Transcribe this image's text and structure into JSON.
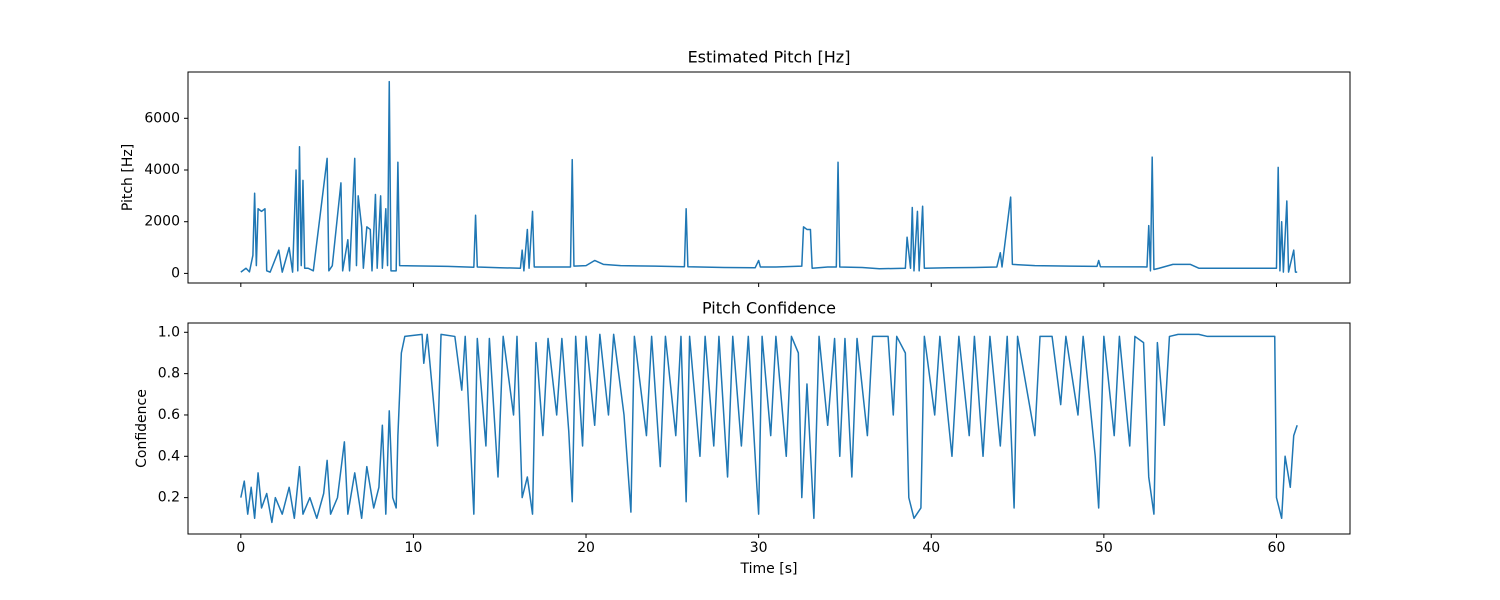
{
  "chart_data": [
    {
      "type": "line",
      "title": "Estimated Pitch [Hz]",
      "ylabel": "Pitch [Hz]",
      "color": "#1f77b4",
      "show_xticklabels": false,
      "xlim": [
        -3.06,
        64.26
      ],
      "ylim": [
        -371,
        7791
      ],
      "xticks": [
        0,
        10,
        20,
        30,
        40,
        50,
        60
      ],
      "yticks": [
        0,
        2000,
        4000,
        6000
      ],
      "x": [
        0,
        0.3,
        0.5,
        0.7,
        0.8,
        0.9,
        1.0,
        1.2,
        1.4,
        1.5,
        1.7,
        2.2,
        2.4,
        2.8,
        3.0,
        3.2,
        3.3,
        3.4,
        3.5,
        3.6,
        3.7,
        3.9,
        4.2,
        5.0,
        5.1,
        5.3,
        5.8,
        5.9,
        6.2,
        6.3,
        6.6,
        6.7,
        6.8,
        7.0,
        7.1,
        7.3,
        7.5,
        7.6,
        7.8,
        7.9,
        8.1,
        8.2,
        8.4,
        8.5,
        8.6,
        8.7,
        9.0,
        9.1,
        9.2,
        10,
        12,
        13.5,
        13.6,
        13.7,
        15,
        16.2,
        16.3,
        16.4,
        16.6,
        16.7,
        16.9,
        17.0,
        18.5,
        19.1,
        19.2,
        19.3,
        20,
        20.5,
        21,
        22,
        24,
        25.7,
        25.8,
        25.9,
        28,
        29.8,
        30,
        30.1,
        31,
        32.5,
        32.6,
        32.8,
        33.0,
        33.1,
        34,
        34.5,
        34.6,
        34.7,
        36,
        37,
        38.5,
        38.6,
        38.8,
        38.9,
        39.0,
        39.2,
        39.3,
        39.5,
        39.6,
        41,
        42.5,
        43.8,
        44.0,
        44.1,
        44.6,
        44.7,
        46,
        48,
        49.6,
        49.7,
        49.8,
        52.5,
        52.6,
        52.7,
        52.8,
        52.9,
        53.2,
        54,
        55,
        55.5,
        60,
        60.1,
        60.2,
        60.3,
        60.4,
        60.6,
        60.7,
        61.0,
        61.1,
        61.2
      ],
      "values": [
        50,
        200,
        60,
        700,
        3100,
        300,
        2500,
        2400,
        2500,
        100,
        50,
        900,
        50,
        1000,
        50,
        4000,
        100,
        4900,
        300,
        3600,
        200,
        200,
        100,
        4450,
        100,
        300,
        3500,
        100,
        1300,
        100,
        4450,
        300,
        3000,
        1800,
        200,
        1800,
        1700,
        100,
        3050,
        200,
        3000,
        200,
        2500,
        300,
        7420,
        100,
        100,
        4300,
        300,
        290,
        270,
        240,
        2250,
        250,
        220,
        200,
        900,
        100,
        1700,
        200,
        2400,
        250,
        250,
        250,
        4400,
        280,
        300,
        500,
        350,
        300,
        280,
        260,
        2500,
        260,
        230,
        220,
        500,
        250,
        250,
        280,
        1800,
        1700,
        1700,
        200,
        250,
        250,
        4300,
        250,
        230,
        180,
        200,
        1400,
        200,
        2550,
        100,
        2400,
        100,
        2600,
        200,
        220,
        230,
        250,
        800,
        250,
        2950,
        350,
        300,
        280,
        270,
        500,
        260,
        250,
        1850,
        100,
        4500,
        150,
        200,
        350,
        350,
        200,
        200,
        4100,
        100,
        2000,
        50,
        2800,
        50,
        900,
        50,
        50
      ]
    },
    {
      "type": "line",
      "title": "Pitch Confidence",
      "ylabel": "Confidence",
      "xlabel": "Time [s]",
      "color": "#1f77b4",
      "show_xticklabels": true,
      "xlim": [
        -3.06,
        64.26
      ],
      "ylim": [
        0.024,
        1.045
      ],
      "xticks": [
        0,
        10,
        20,
        30,
        40,
        50,
        60
      ],
      "yticks": [
        0.2,
        0.4,
        0.6,
        0.8,
        {
          "value": 1,
          "label": "1.0"
        }
      ],
      "x": [
        0,
        0.2,
        0.4,
        0.6,
        0.8,
        1.0,
        1.2,
        1.5,
        1.8,
        2.0,
        2.4,
        2.8,
        3.1,
        3.4,
        3.6,
        4.0,
        4.4,
        4.8,
        5.0,
        5.2,
        5.6,
        6.0,
        6.2,
        6.6,
        7.0,
        7.3,
        7.7,
        8.0,
        8.2,
        8.4,
        8.6,
        8.8,
        9.0,
        9.1,
        9.3,
        9.5,
        10.5,
        10.6,
        10.8,
        11.4,
        11.6,
        12.4,
        12.8,
        13.0,
        13.5,
        13.7,
        14.2,
        14.4,
        14.9,
        15.2,
        15.8,
        16.0,
        16.3,
        16.6,
        16.9,
        17.1,
        17.5,
        17.8,
        18.3,
        18.6,
        19.0,
        19.2,
        19.4,
        19.8,
        20.0,
        20.5,
        20.8,
        21.3,
        21.6,
        22.2,
        22.6,
        22.8,
        23.5,
        23.8,
        24.3,
        24.6,
        25.2,
        25.5,
        25.8,
        26.0,
        26.6,
        26.9,
        27.4,
        27.7,
        28.2,
        28.5,
        29.0,
        29.4,
        29.9,
        30.0,
        30.2,
        30.7,
        31.0,
        31.6,
        31.9,
        32.3,
        32.5,
        32.8,
        33.2,
        33.5,
        34.0,
        34.4,
        34.7,
        35.0,
        35.4,
        35.7,
        36.3,
        36.6,
        37.5,
        37.8,
        38.0,
        38.5,
        38.7,
        39.0,
        39.4,
        39.6,
        40.2,
        40.5,
        41.2,
        41.6,
        42.2,
        42.5,
        43.0,
        43.4,
        44.0,
        44.4,
        44.8,
        45.0,
        46.0,
        46.3,
        47.0,
        47.5,
        47.8,
        48.5,
        48.8,
        49.5,
        49.7,
        50.0,
        50.6,
        50.9,
        51.5,
        51.8,
        52.3,
        52.6,
        52.9,
        53.1,
        53.5,
        53.8,
        54.3,
        55.5,
        56.0,
        59.9,
        60.0,
        60.3,
        60.5,
        60.8,
        61.0,
        61.2
      ],
      "values": [
        0.2,
        0.28,
        0.12,
        0.25,
        0.1,
        0.32,
        0.15,
        0.22,
        0.08,
        0.2,
        0.12,
        0.25,
        0.1,
        0.35,
        0.12,
        0.2,
        0.1,
        0.22,
        0.38,
        0.12,
        0.2,
        0.47,
        0.12,
        0.32,
        0.1,
        0.35,
        0.15,
        0.25,
        0.55,
        0.12,
        0.62,
        0.2,
        0.15,
        0.5,
        0.9,
        0.98,
        0.99,
        0.85,
        0.99,
        0.45,
        0.99,
        0.98,
        0.72,
        0.98,
        0.12,
        0.97,
        0.45,
        0.97,
        0.3,
        0.98,
        0.6,
        0.98,
        0.2,
        0.3,
        0.12,
        0.95,
        0.5,
        0.97,
        0.6,
        0.97,
        0.52,
        0.18,
        0.98,
        0.45,
        0.98,
        0.55,
        0.99,
        0.6,
        0.99,
        0.6,
        0.13,
        0.98,
        0.5,
        0.98,
        0.35,
        0.98,
        0.5,
        0.98,
        0.18,
        0.98,
        0.4,
        0.98,
        0.45,
        0.98,
        0.3,
        0.98,
        0.45,
        0.98,
        0.25,
        0.12,
        0.98,
        0.5,
        0.98,
        0.4,
        0.98,
        0.9,
        0.2,
        0.75,
        0.1,
        0.98,
        0.55,
        0.97,
        0.4,
        0.97,
        0.3,
        0.97,
        0.5,
        0.98,
        0.98,
        0.6,
        0.98,
        0.9,
        0.2,
        0.1,
        0.15,
        0.98,
        0.6,
        0.98,
        0.4,
        0.98,
        0.5,
        0.98,
        0.4,
        0.98,
        0.45,
        0.98,
        0.15,
        0.98,
        0.5,
        0.98,
        0.98,
        0.65,
        0.98,
        0.6,
        0.98,
        0.4,
        0.15,
        0.98,
        0.5,
        0.98,
        0.45,
        0.98,
        0.95,
        0.3,
        0.12,
        0.95,
        0.55,
        0.98,
        0.99,
        0.99,
        0.98,
        0.98,
        0.2,
        0.1,
        0.4,
        0.25,
        0.5,
        0.55
      ]
    }
  ]
}
